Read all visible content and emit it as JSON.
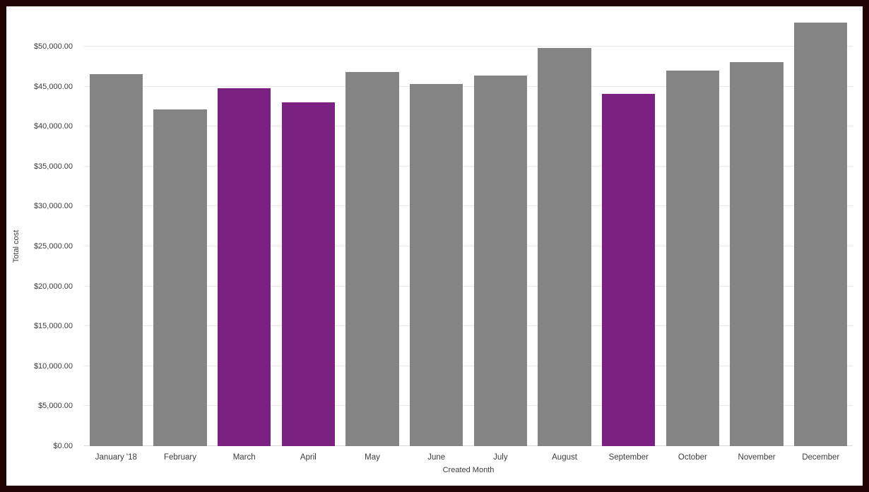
{
  "chart_data": {
    "type": "bar",
    "title": "",
    "xlabel": "Created Month",
    "ylabel": "Total cost",
    "categories": [
      "January '18",
      "February",
      "March",
      "April",
      "May",
      "June",
      "July",
      "August",
      "September",
      "October",
      "November",
      "December"
    ],
    "values": [
      46600,
      42100,
      44800,
      43000,
      46800,
      45300,
      46400,
      49800,
      44100,
      47000,
      48100,
      53000
    ],
    "highlighted_categories": [
      "March",
      "April",
      "September"
    ],
    "colors": {
      "bar_default": "#848484",
      "bar_highlight": "#7b2182",
      "frame_border": "#210404",
      "gridline": "#e9e9e9"
    },
    "ylim": [
      0,
      53800
    ],
    "yticks": [
      {
        "value": 0,
        "label": "$0.00"
      },
      {
        "value": 5000,
        "label": "$5,000.00"
      },
      {
        "value": 10000,
        "label": "$10,000.00"
      },
      {
        "value": 15000,
        "label": "$15,000.00"
      },
      {
        "value": 20000,
        "label": "$20,000.00"
      },
      {
        "value": 25000,
        "label": "$25,000.00"
      },
      {
        "value": 30000,
        "label": "$30,000.00"
      },
      {
        "value": 35000,
        "label": "$35,000.00"
      },
      {
        "value": 40000,
        "label": "$40,000.00"
      },
      {
        "value": 45000,
        "label": "$45,000.00"
      },
      {
        "value": 50000,
        "label": "$50,000.00"
      }
    ],
    "grid": "horizontal",
    "legend": "none"
  }
}
